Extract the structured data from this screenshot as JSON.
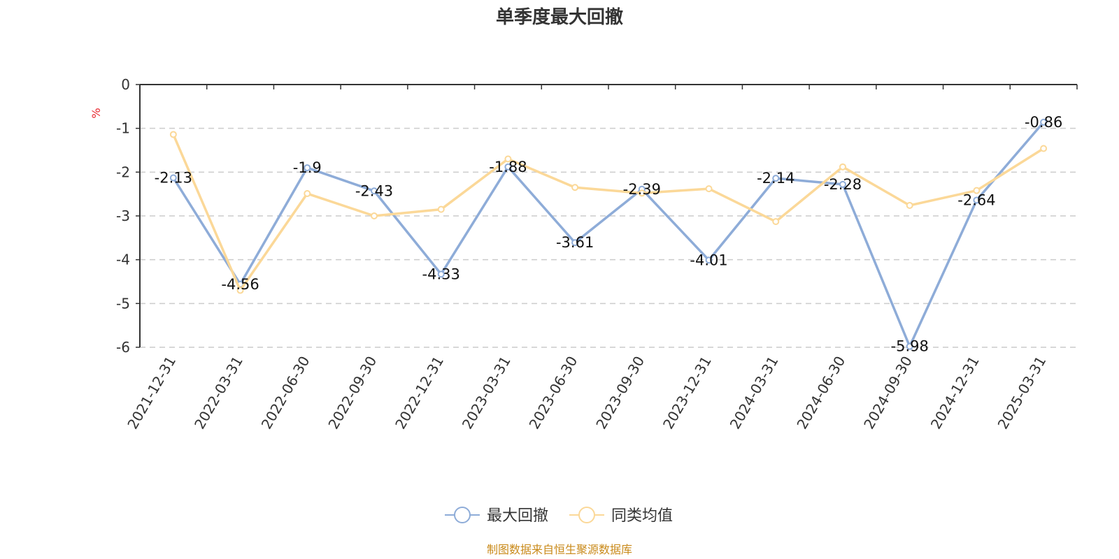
{
  "chart_data": {
    "type": "line",
    "title": "单季度最大回撤",
    "ylabel": "%",
    "ylim": [
      -6,
      0
    ],
    "yticks": [
      0,
      -1,
      -2,
      -3,
      -4,
      -5,
      -6
    ],
    "grid": true,
    "legend_position": "bottom",
    "categories": [
      "2021-12-31",
      "2022-03-31",
      "2022-06-30",
      "2022-09-30",
      "2022-12-31",
      "2023-03-31",
      "2023-06-30",
      "2023-09-30",
      "2023-12-31",
      "2024-03-31",
      "2024-06-30",
      "2024-09-30",
      "2024-12-31",
      "2025-03-31"
    ],
    "series": [
      {
        "name": "最大回撤",
        "color": "#8eacd8",
        "show_labels": true,
        "values": [
          -2.13,
          -4.56,
          -1.9,
          -2.43,
          -4.33,
          -1.88,
          -3.61,
          -2.39,
          -4.01,
          -2.14,
          -2.28,
          -5.98,
          -2.64,
          -0.86
        ]
      },
      {
        "name": "同类均值",
        "color": "#fbd898",
        "show_labels": false,
        "values": [
          -1.14,
          -4.7,
          -2.49,
          -3.0,
          -2.85,
          -1.7,
          -2.35,
          -2.48,
          -2.38,
          -3.13,
          -1.88,
          -2.76,
          -2.42,
          -1.46
        ]
      }
    ]
  },
  "source_note": "制图数据来自恒生聚源数据库"
}
